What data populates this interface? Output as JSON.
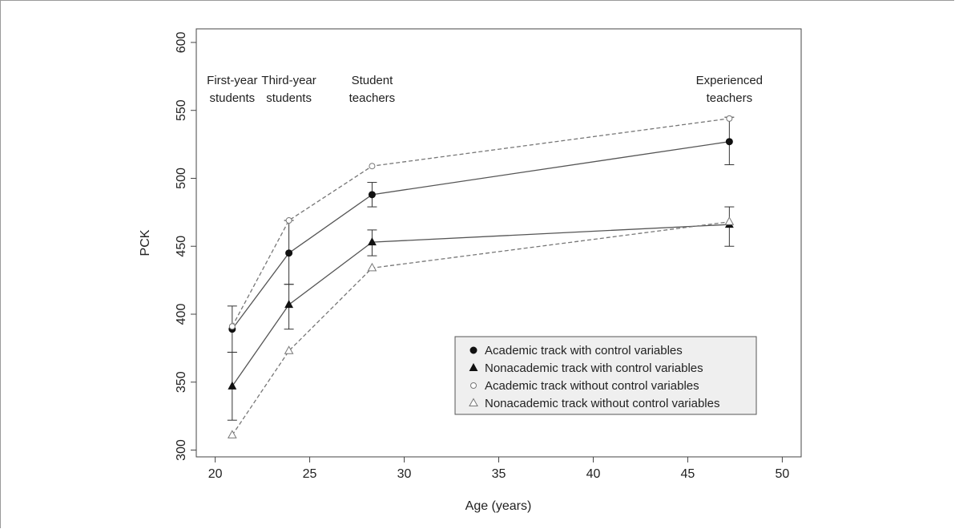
{
  "chart_data": {
    "type": "line",
    "xlabel": "Age (years)",
    "ylabel": "PCK",
    "xlim": [
      19,
      51
    ],
    "ylim": [
      295,
      610
    ],
    "x_ticks": [
      20,
      25,
      30,
      35,
      40,
      45,
      50
    ],
    "y_ticks": [
      300,
      350,
      400,
      450,
      500,
      550,
      600
    ],
    "grid": false,
    "legend_position": "bottom-right",
    "stage_labels": [
      {
        "lines": [
          "First-year",
          "students"
        ],
        "x": 20.9
      },
      {
        "lines": [
          "Third-year",
          "students"
        ],
        "x": 23.9
      },
      {
        "lines": [
          "Student",
          "teachers"
        ],
        "x": 28.3
      },
      {
        "lines": [
          "Experienced",
          "teachers"
        ],
        "x": 47.2
      }
    ],
    "series": [
      {
        "name": "Academic track with control variables",
        "marker": "filled-circle",
        "line": "solid",
        "x": [
          20.9,
          23.9,
          28.3,
          47.2
        ],
        "y": [
          389,
          445,
          488,
          527
        ],
        "err_low": [
          372,
          422,
          479,
          510
        ],
        "err_high": [
          406,
          469,
          497,
          545
        ]
      },
      {
        "name": "Nonacademic track with control variables",
        "marker": "filled-triangle",
        "line": "solid",
        "x": [
          20.9,
          23.9,
          28.3,
          47.2
        ],
        "y": [
          347,
          407,
          453,
          466
        ],
        "err_low": [
          322,
          389,
          443,
          450
        ],
        "err_high": [
          372,
          422,
          462,
          479
        ]
      },
      {
        "name": "Academic track without control variables",
        "marker": "open-circle",
        "line": "dashed",
        "x": [
          20.9,
          23.9,
          28.3,
          47.2
        ],
        "y": [
          391,
          469,
          509,
          544
        ]
      },
      {
        "name": "Nonacademic track without control variables",
        "marker": "open-triangle",
        "line": "dashed",
        "x": [
          20.9,
          23.9,
          28.3,
          47.2
        ],
        "y": [
          311,
          373,
          434,
          468
        ]
      }
    ]
  }
}
